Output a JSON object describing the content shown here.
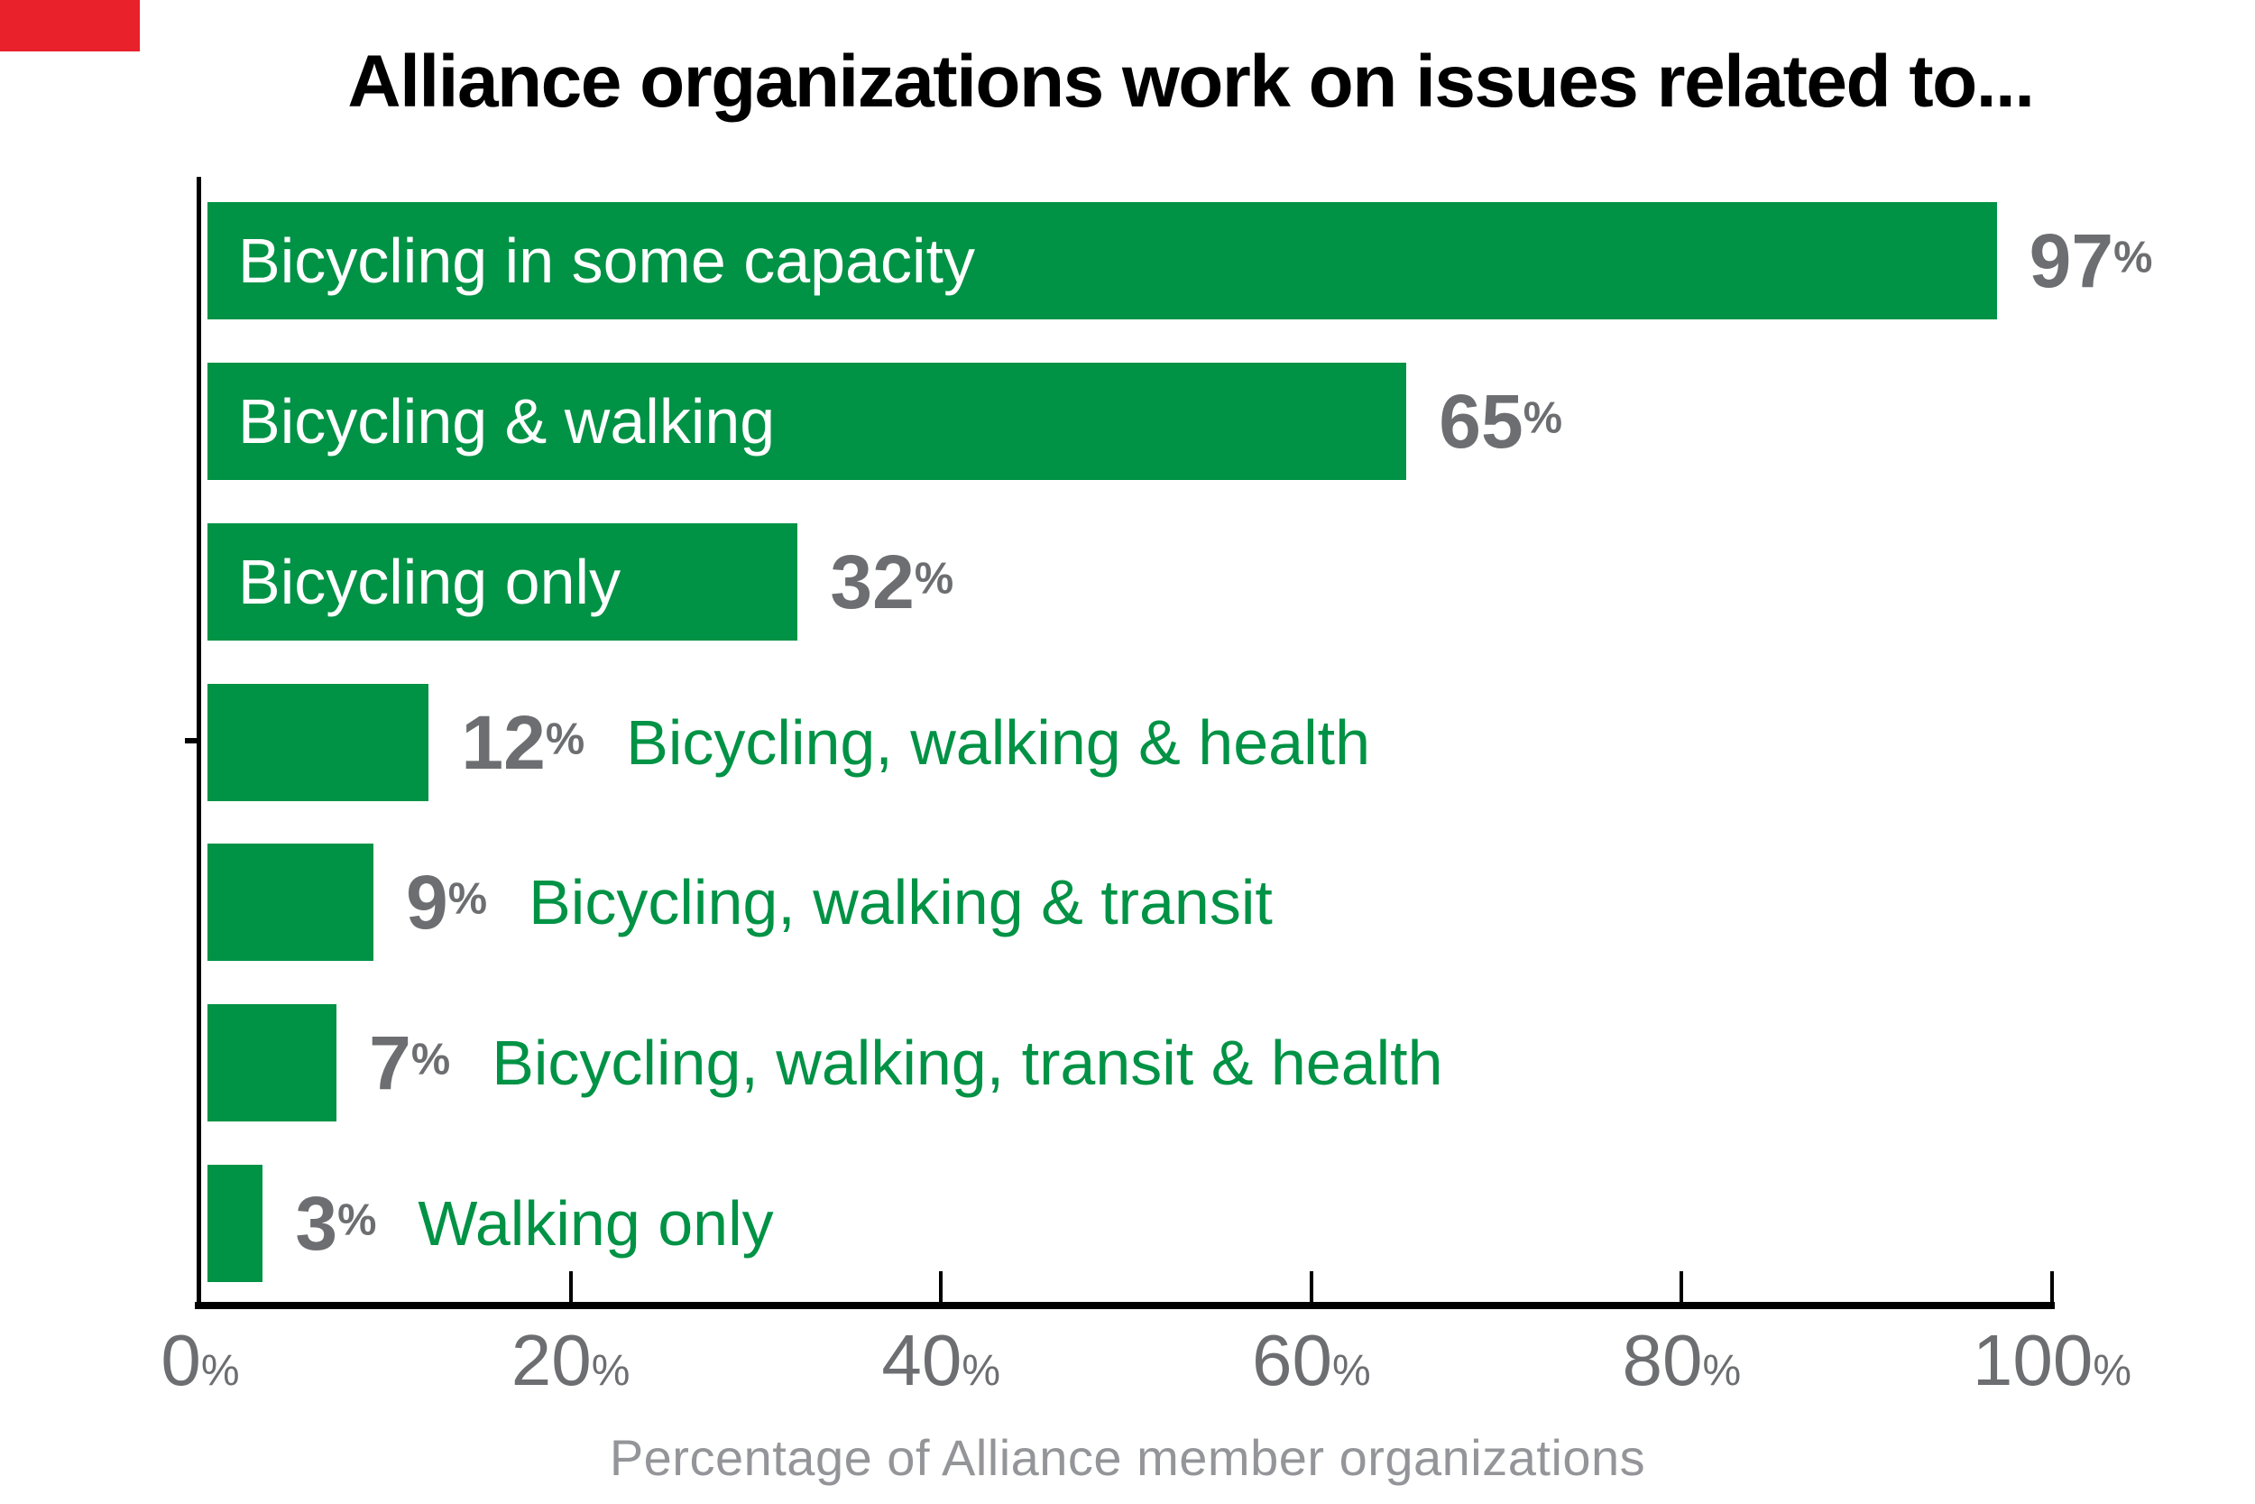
{
  "decoration": {
    "red_badge_color": "#e8212a"
  },
  "title": "Alliance organizations work on issues related to...",
  "chart_data": {
    "type": "bar",
    "orientation": "horizontal",
    "title": "Alliance organizations work on issues related to...",
    "categories": [
      "Bicycling in some capacity",
      "Bicycling & walking",
      "Bicycling only",
      "Bicycling, walking & health",
      "Bicycling, walking & transit",
      "Bicycling, walking, transit & health",
      "Walking only"
    ],
    "values": [
      97,
      65,
      32,
      12,
      9,
      7,
      3
    ],
    "value_labels": [
      "97%",
      "65%",
      "32%",
      "12%",
      "9%",
      "7%",
      "3%"
    ],
    "label_inside": [
      true,
      true,
      true,
      false,
      false,
      false,
      false
    ],
    "xlabel": "Percentage of Alliance member organizations",
    "xlim": [
      0,
      100
    ],
    "x_ticks": [
      "0%",
      "20%",
      "40%",
      "60%",
      "80%",
      "100%"
    ],
    "x_tick_values": [
      0,
      20,
      40,
      60,
      80,
      100
    ],
    "grid": false,
    "legend": "none",
    "bar_color": "#009245",
    "inside_label_color": "#ffffff",
    "outside_label_color": "#009245",
    "value_color": "#6d6e71",
    "tick_label_color": "#6d6e71",
    "axis_caption_color": "#949599",
    "axis_color": "#000000"
  }
}
